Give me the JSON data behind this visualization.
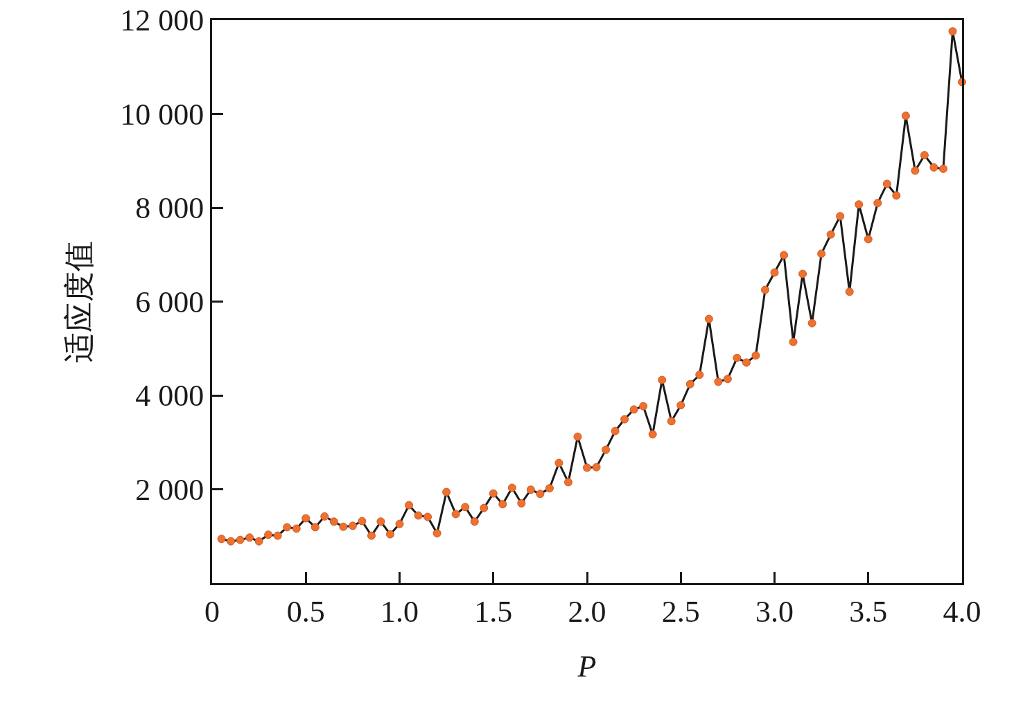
{
  "chart_data": {
    "type": "line",
    "xlabel": "P",
    "ylabel": "适应度值",
    "x": [
      0.05,
      0.1,
      0.15,
      0.2,
      0.25,
      0.3,
      0.35,
      0.4,
      0.45,
      0.5,
      0.55,
      0.6,
      0.65,
      0.7,
      0.75,
      0.8,
      0.85,
      0.9,
      0.95,
      1.0,
      1.05,
      1.1,
      1.15,
      1.2,
      1.25,
      1.3,
      1.35,
      1.4,
      1.45,
      1.5,
      1.55,
      1.6,
      1.65,
      1.7,
      1.75,
      1.8,
      1.85,
      1.9,
      1.95,
      2.0,
      2.05,
      2.1,
      2.15,
      2.2,
      2.25,
      2.3,
      2.35,
      2.4,
      2.45,
      2.5,
      2.55,
      2.6,
      2.65,
      2.7,
      2.75,
      2.8,
      2.85,
      2.9,
      2.95,
      3.0,
      3.05,
      3.1,
      3.15,
      3.2,
      3.25,
      3.3,
      3.35,
      3.4,
      3.45,
      3.5,
      3.55,
      3.6,
      3.65,
      3.7,
      3.75,
      3.8,
      3.85,
      3.9,
      3.95,
      4.0
    ],
    "series": [
      {
        "color": "#f07030",
        "values": [
          940,
          890,
          920,
          970,
          890,
          1030,
          1010,
          1190,
          1160,
          1380,
          1190,
          1420,
          1310,
          1200,
          1220,
          1320,
          1010,
          1310,
          1040,
          1260,
          1660,
          1440,
          1410,
          1060,
          1940,
          1470,
          1620,
          1310,
          1600,
          1910,
          1680,
          2030,
          1700,
          1990,
          1900,
          2020,
          2560,
          2150,
          3120,
          2460,
          2470,
          2840,
          3240,
          3490,
          3700,
          3770,
          3170,
          4330,
          3450,
          3790,
          4240,
          4440,
          5630,
          4290,
          4350,
          4800,
          4700,
          4850,
          6250,
          6620,
          6990,
          5140,
          6590,
          5540,
          7020,
          7430,
          7820,
          6210,
          8070,
          7330,
          8100,
          8510,
          8260,
          9960,
          8790,
          9120,
          8860,
          8830,
          11760,
          10680
        ]
      }
    ],
    "xlim": [
      0,
      4
    ],
    "ylim": [
      0,
      12000
    ],
    "xticks": [
      0,
      {
        "value": 0.5,
        "label": "0.5"
      },
      {
        "value": 1,
        "label": "1.0"
      },
      {
        "value": 1.5,
        "label": "1.5"
      },
      {
        "value": 2,
        "label": "2.0"
      },
      {
        "value": 2.5,
        "label": "2.5"
      },
      {
        "value": 3,
        "label": "3.0"
      },
      {
        "value": 3.5,
        "label": "3.5"
      },
      {
        "value": 4,
        "label": "4.0"
      }
    ],
    "yticks": [
      {
        "value": 2000,
        "label": "2 000"
      },
      {
        "value": 4000,
        "label": "4 000"
      },
      {
        "value": 6000,
        "label": "6 000"
      },
      {
        "value": 8000,
        "label": "8 000"
      },
      {
        "value": 10000,
        "label": "10 000"
      },
      {
        "value": 12000,
        "label": "12 000"
      }
    ],
    "grid": false,
    "marker": "circle",
    "line_style": "solid"
  }
}
